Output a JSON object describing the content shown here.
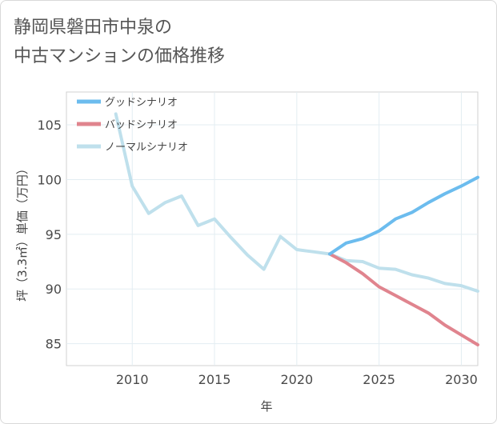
{
  "title_line1": "静岡県磐田市中泉の",
  "title_line2": "中古マンションの価格推移",
  "chart_data": {
    "type": "line",
    "xlabel": "年",
    "ylabel": "坪（3.3㎡）単価（万円）",
    "xlim": [
      2006,
      2031
    ],
    "ylim": [
      83,
      108
    ],
    "x_ticks": [
      2010,
      2015,
      2020,
      2025,
      2030
    ],
    "y_ticks": [
      85,
      90,
      95,
      100,
      105
    ],
    "grid": true,
    "legend_position": "top-left",
    "series": [
      {
        "name": "グッドシナリオ",
        "color": "#6cbcee",
        "x": [
          2022,
          2023,
          2024,
          2025,
          2026,
          2027,
          2028,
          2029,
          2030,
          2031
        ],
        "y": [
          93.2,
          94.2,
          94.6,
          95.3,
          96.4,
          97.0,
          97.9,
          98.7,
          99.4,
          100.2
        ]
      },
      {
        "name": "バッドシナリオ",
        "color": "#e0848e",
        "x": [
          2022,
          2023,
          2024,
          2025,
          2026,
          2027,
          2028,
          2029,
          2030,
          2031
        ],
        "y": [
          93.2,
          92.4,
          91.4,
          90.2,
          89.4,
          88.6,
          87.8,
          86.7,
          85.8,
          84.9
        ]
      },
      {
        "name": "ノーマルシナリオ",
        "color": "#bfe0ec",
        "x": [
          2009,
          2010,
          2011,
          2012,
          2013,
          2014,
          2015,
          2016,
          2017,
          2018,
          2019,
          2020,
          2021,
          2022,
          2023,
          2024,
          2025,
          2026,
          2027,
          2028,
          2029,
          2030,
          2031
        ],
        "y": [
          106.0,
          99.4,
          96.9,
          97.9,
          98.5,
          95.8,
          96.4,
          94.7,
          93.1,
          91.8,
          94.8,
          93.6,
          93.4,
          93.2,
          92.6,
          92.5,
          91.9,
          91.8,
          91.3,
          91.0,
          90.5,
          90.3,
          89.8
        ]
      }
    ]
  }
}
